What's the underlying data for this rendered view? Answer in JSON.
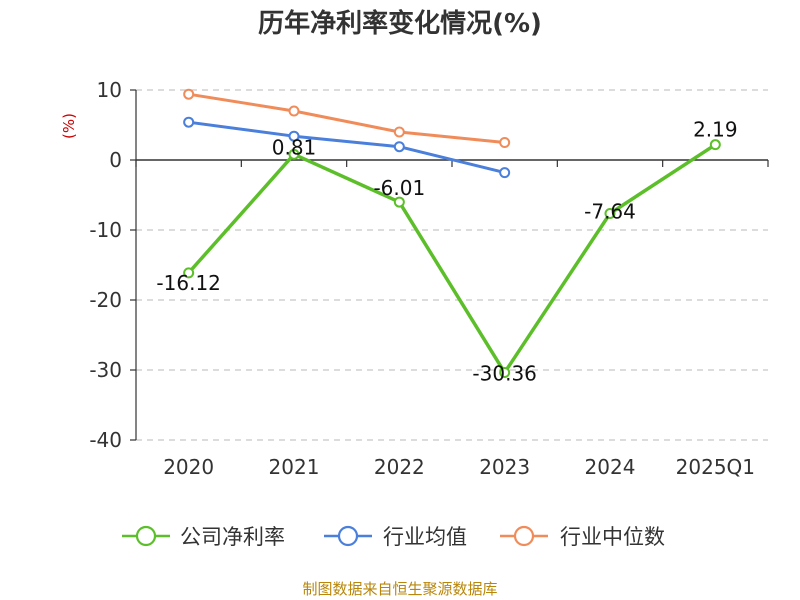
{
  "chart_data": {
    "type": "line",
    "title": "历年净利率变化情况(%)",
    "xlabel": "",
    "ylabel": "",
    "yunit": "(%)",
    "categories": [
      "2020",
      "2021",
      "2022",
      "2023",
      "2024",
      "2025Q1"
    ],
    "ylim": [
      -40,
      10
    ],
    "yticks": [
      10,
      0,
      -10,
      -20,
      -30,
      -40
    ],
    "grid": true,
    "legend_position": "bottom",
    "series": [
      {
        "name": "公司净利率",
        "color": "#5cbf2a",
        "values": [
          -16.12,
          0.81,
          -6.01,
          -30.36,
          -7.64,
          2.19
        ],
        "labels": [
          "-16.12",
          "0.81",
          "-6.01",
          "-30.36",
          "-7.64",
          "2.19"
        ]
      },
      {
        "name": "行业均值",
        "color": "#4a7fdb",
        "values": [
          5.4,
          3.4,
          1.9,
          -1.8,
          null,
          null
        ]
      },
      {
        "name": "行业中位数",
        "color": "#f08c5a",
        "values": [
          9.4,
          7.0,
          4.0,
          2.5,
          null,
          null
        ]
      }
    ]
  },
  "footer": {
    "source": "制图数据来自恒生聚源数据库"
  }
}
